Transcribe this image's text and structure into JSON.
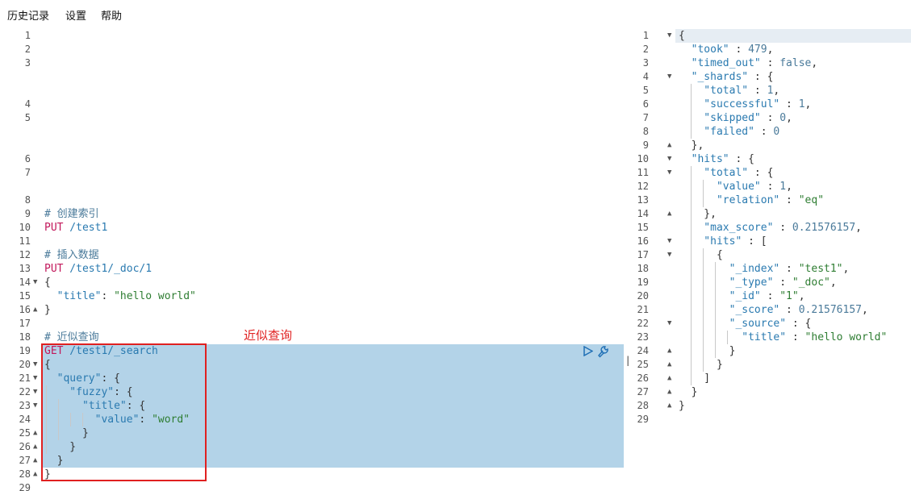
{
  "menu": [
    "历史记录",
    "设置",
    "帮助"
  ],
  "annotation": "近似查询",
  "divider_glyph": "‖",
  "left_lines": {
    "9": "# 创建索引",
    "10a": "PUT",
    "10b": " /test1",
    "12": "# 插入数据",
    "13a": "PUT",
    "13b": " /test1/_doc/1",
    "14": "{",
    "15a": "  \"title\"",
    "15b": ": ",
    "15c": "\"hello world\"",
    "16": "}",
    "18": "# 近似查询",
    "19a": "GET",
    "19b": " /test1/_search",
    "20": "{",
    "21a": "  \"query\"",
    "21b": ": {",
    "22a": "    \"fuzzy\"",
    "22b": ": {",
    "23a": "      \"title\"",
    "23b": ": {",
    "24a": "        \"value\"",
    "24b": ": ",
    "24c": "\"word\"",
    "25": "      }",
    "26": "    }",
    "27": "  }",
    "28": "}"
  },
  "right_lines": {
    "1": "{",
    "2a": "  \"took\"",
    "2b": " : ",
    "2c": "479",
    "2d": ",",
    "3a": "  \"timed_out\"",
    "3b": " : ",
    "3c": "false",
    "3d": ",",
    "4a": "  \"_shards\"",
    "4b": " : {",
    "5a": "    \"total\"",
    "5b": " : ",
    "5c": "1",
    "5d": ",",
    "6a": "    \"successful\"",
    "6b": " : ",
    "6c": "1",
    "6d": ",",
    "7a": "    \"skipped\"",
    "7b": " : ",
    "7c": "0",
    "7d": ",",
    "8a": "    \"failed\"",
    "8b": " : ",
    "8c": "0",
    "9": "  },",
    "10a": "  \"hits\"",
    "10b": " : {",
    "11a": "    \"total\"",
    "11b": " : {",
    "12a": "      \"value\"",
    "12b": " : ",
    "12c": "1",
    "12d": ",",
    "13a": "      \"relation\"",
    "13b": " : ",
    "13c": "\"eq\"",
    "14": "    },",
    "15a": "    \"max_score\"",
    "15b": " : ",
    "15c": "0.21576157",
    "15d": ",",
    "16a": "    \"hits\"",
    "16b": " : [",
    "17": "      {",
    "18a": "        \"_index\"",
    "18b": " : ",
    "18c": "\"test1\"",
    "18d": ",",
    "19a": "        \"_type\"",
    "19b": " : ",
    "19c": "\"_doc\"",
    "19d": ",",
    "20a": "        \"_id\"",
    "20b": " : ",
    "20c": "\"1\"",
    "20d": ",",
    "21a": "        \"_score\"",
    "21b": " : ",
    "21c": "0.21576157",
    "21d": ",",
    "22a": "        \"_source\"",
    "22b": " : {",
    "23a": "          \"title\"",
    "23b": " : ",
    "23c": "\"hello world\"",
    "24": "        }",
    "25": "      }",
    "26": "    ]",
    "27": "  }",
    "28": "}"
  }
}
